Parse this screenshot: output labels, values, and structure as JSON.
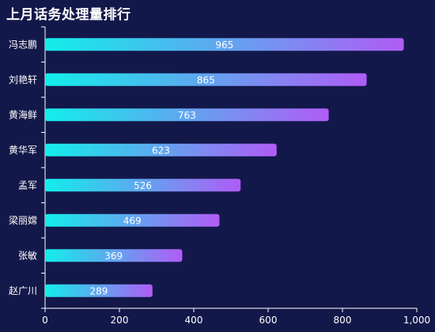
{
  "title": "上月话务处理量排行",
  "chart_data": {
    "type": "bar",
    "orientation": "horizontal",
    "title": "上月话务处理量排行",
    "categories": [
      "冯志鹏",
      "刘艳轩",
      "黄海鲜",
      "黄华军",
      "孟军",
      "梁丽嫦",
      "张敏",
      "赵广川"
    ],
    "values": [
      965,
      865,
      763,
      623,
      526,
      469,
      369,
      289
    ],
    "xlim": [
      0,
      1000
    ],
    "x_ticks": [
      0,
      200,
      400,
      600,
      800,
      1000
    ],
    "x_tick_labels": [
      "0",
      "200",
      "400",
      "600",
      "800",
      "1,000"
    ],
    "grid": false,
    "data_labels": true,
    "colors": {
      "gradient_start": "#12eeea",
      "gradient_end": "#b05cf5",
      "axis": "#ffffff",
      "background": "#13184a"
    }
  }
}
